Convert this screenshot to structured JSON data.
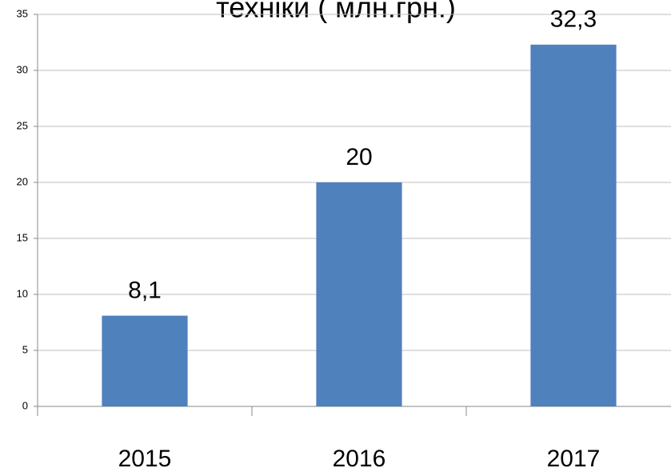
{
  "chart_data": {
    "type": "bar",
    "title": "техніки ( млн.грн.)",
    "categories": [
      "2015",
      "2016",
      "2017"
    ],
    "values": [
      8.1,
      20,
      32.3
    ],
    "value_labels": [
      "8,1",
      "20",
      "32,3"
    ],
    "color": "#4f81bd",
    "ylim": [
      0,
      35
    ],
    "yticks": [
      0,
      5,
      10,
      15,
      20,
      25,
      30,
      35
    ],
    "grid": true
  }
}
